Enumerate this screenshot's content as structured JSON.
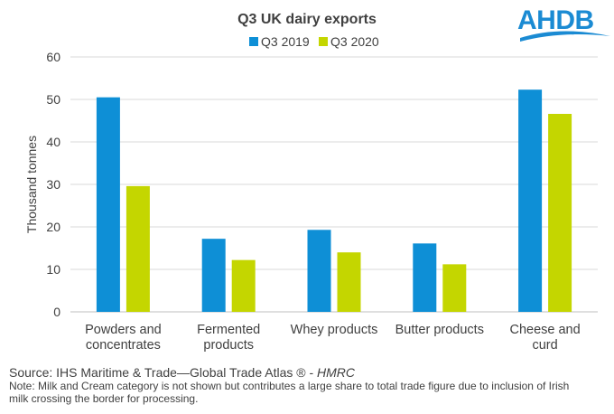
{
  "chart_data": {
    "type": "bar",
    "title": "Q3 UK dairy exports",
    "ylabel": "Thousand tonnes",
    "xlabel": "",
    "ylim": [
      0,
      60
    ],
    "yticks": [
      0,
      10,
      20,
      30,
      40,
      50,
      60
    ],
    "grid": true,
    "legend_position": "top",
    "categories": [
      [
        "Powders and",
        "concentrates"
      ],
      [
        "Fermented",
        "products"
      ],
      [
        "Whey products"
      ],
      [
        "Butter products"
      ],
      [
        "Cheese and",
        "curd"
      ]
    ],
    "series": [
      {
        "name": "Q3 2019",
        "color": "#0e8fd6",
        "values": [
          50.5,
          17.2,
          19.3,
          16.1,
          52.3
        ]
      },
      {
        "name": "Q3 2020",
        "color": "#c4d600",
        "values": [
          29.6,
          12.2,
          14.0,
          11.2,
          46.6
        ]
      }
    ]
  },
  "logo": {
    "text": "AHDB",
    "color": "#1b8bd3"
  },
  "source": {
    "text": "Source: IHS Maritime & Trade—Global Trade Atlas ® - ",
    "italic": "HMRC"
  },
  "note": "Note: Milk and Cream category is not shown but contributes a large share to total trade figure due to inclusion of Irish milk crossing the border for processing."
}
